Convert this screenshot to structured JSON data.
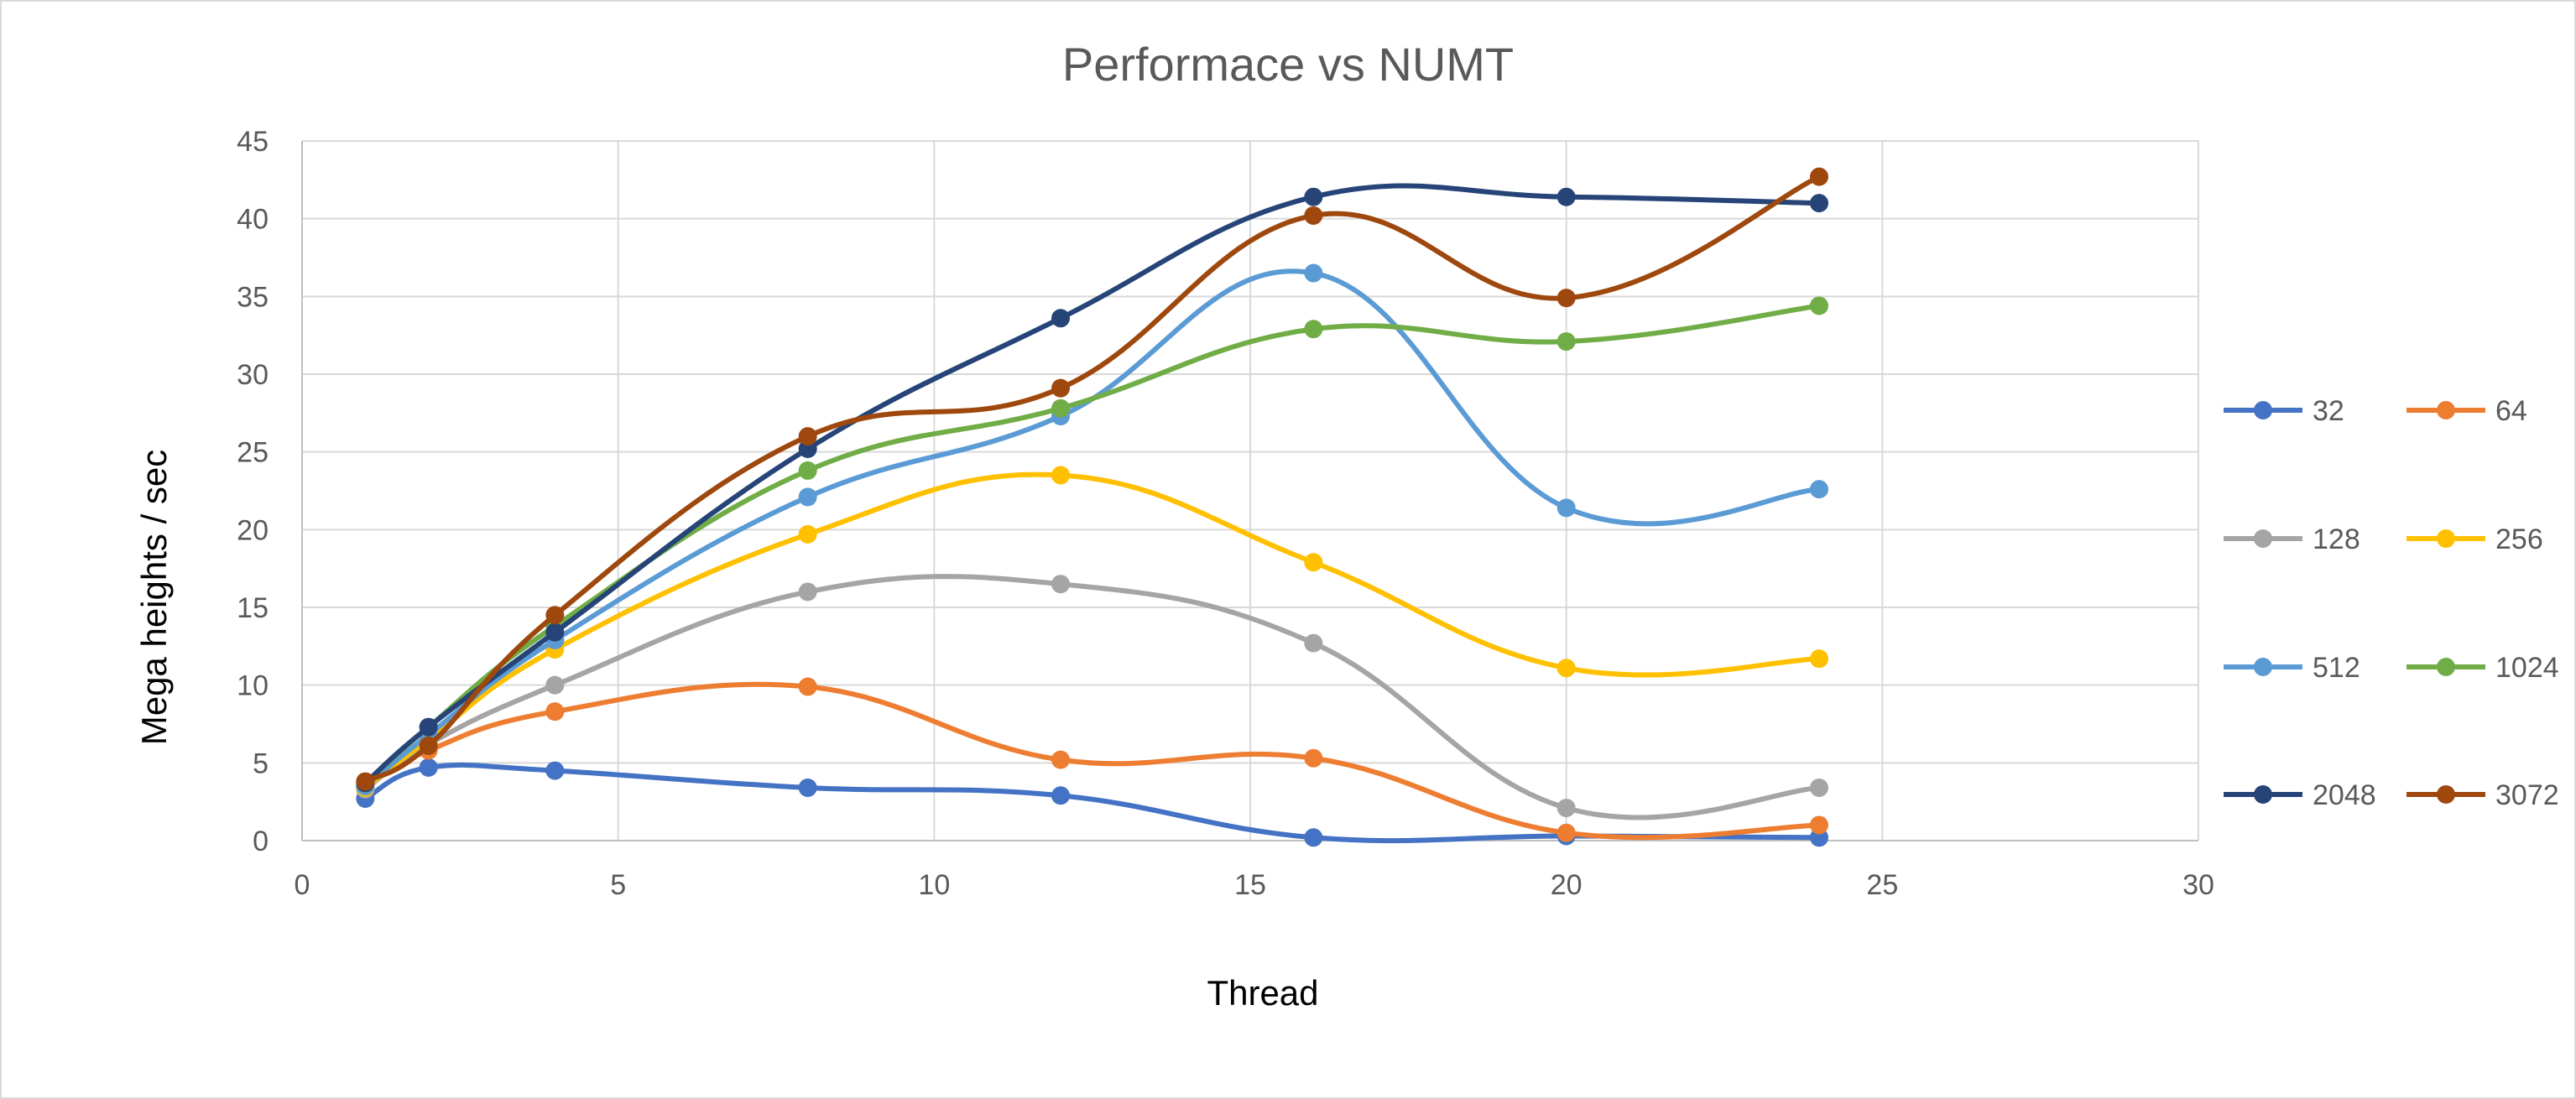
{
  "chart_data": {
    "type": "line",
    "title": "Performace vs NUMT",
    "xlabel": "Thread",
    "ylabel": "Mega heights / sec",
    "xlim": [
      0,
      30
    ],
    "ylim": [
      0,
      45
    ],
    "xticks": [
      0,
      5,
      10,
      15,
      20,
      25,
      30
    ],
    "yticks": [
      0,
      5,
      10,
      15,
      20,
      25,
      30,
      35,
      40,
      45
    ],
    "grid": true,
    "smooth": true,
    "legend_position": "right",
    "x": [
      1,
      2,
      4,
      8,
      12,
      16,
      20,
      24
    ],
    "series": [
      {
        "name": "32",
        "color": "#4472C4",
        "values": [
          2.7,
          4.7,
          4.5,
          3.4,
          2.9,
          0.2,
          0.3,
          0.2
        ]
      },
      {
        "name": "64",
        "color": "#ED7D31",
        "values": [
          3.5,
          5.8,
          8.3,
          9.9,
          5.2,
          5.3,
          0.5,
          1.0
        ]
      },
      {
        "name": "128",
        "color": "#A5A5A5",
        "values": [
          3.3,
          6.2,
          10.0,
          16.0,
          16.5,
          12.7,
          2.1,
          3.4
        ]
      },
      {
        "name": "256",
        "color": "#FFC000",
        "values": [
          3.4,
          6.5,
          12.3,
          19.7,
          23.5,
          17.9,
          11.1,
          11.7
        ]
      },
      {
        "name": "512",
        "color": "#5B9BD5",
        "values": [
          3.5,
          6.8,
          12.9,
          22.1,
          27.3,
          36.5,
          21.4,
          22.6
        ]
      },
      {
        "name": "1024",
        "color": "#70AD47",
        "values": [
          3.7,
          7.3,
          13.8,
          23.8,
          27.8,
          32.9,
          32.1,
          34.4
        ]
      },
      {
        "name": "2048",
        "color": "#264478",
        "values": [
          3.7,
          7.3,
          13.4,
          25.2,
          33.6,
          41.4,
          41.4,
          41.0
        ]
      },
      {
        "name": "3072",
        "color": "#9E480E",
        "values": [
          3.8,
          6.1,
          14.5,
          26.0,
          29.1,
          40.2,
          34.9,
          42.7
        ]
      }
    ]
  }
}
